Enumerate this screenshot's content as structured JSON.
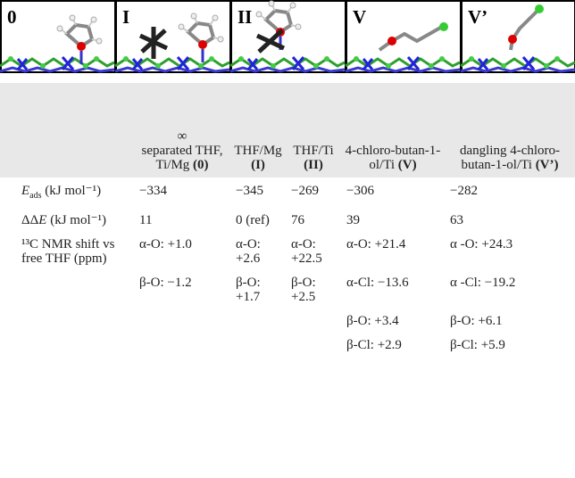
{
  "panels": [
    "0",
    "I",
    "II",
    "V",
    "V’"
  ],
  "table": {
    "columns": [
      {
        "symbol": "∞",
        "text": "separated THF, Ti/Mg",
        "label": "(0)"
      },
      {
        "text": "THF/Mg",
        "label": "(I)"
      },
      {
        "text": "THF/Ti",
        "label": "(II)"
      },
      {
        "text": "4-chloro-butan-1-ol/Ti",
        "label": "(V)"
      },
      {
        "text": "dangling 4-chloro-butan-1-ol/Ti",
        "label": "(V’)"
      }
    ],
    "rows": [
      {
        "symbol": "E",
        "subscript": "ads",
        "unit": "(kJ mol⁻¹)",
        "cells": [
          "−334",
          "−345",
          "−269",
          "−306",
          "−282"
        ]
      },
      {
        "prefix": "ΔΔ",
        "symbol": "E",
        "unit": "(kJ mol⁻¹)",
        "cells": [
          "11",
          "0 (ref)",
          "76",
          "39",
          "63"
        ]
      },
      {
        "label": "¹³C NMR shift vs free THF (ppm)",
        "cells": [
          "α-O: +1.0",
          "α-O: +2.6",
          "α-O: +22.5",
          "α-O: +21.4",
          "α -O: +24.3"
        ]
      },
      {
        "cells": [
          "β-O: −1.2",
          "β-O: +1.7",
          "β-O: +2.5",
          "α-Cl: −13.6",
          "α -Cl: −19.2"
        ]
      },
      {
        "cells": [
          null,
          null,
          null,
          "β-O: +3.4",
          "β-O: +6.1"
        ]
      },
      {
        "cells": [
          null,
          null,
          null,
          "β-Cl: +2.9",
          "β-Cl: +5.9"
        ]
      }
    ]
  }
}
